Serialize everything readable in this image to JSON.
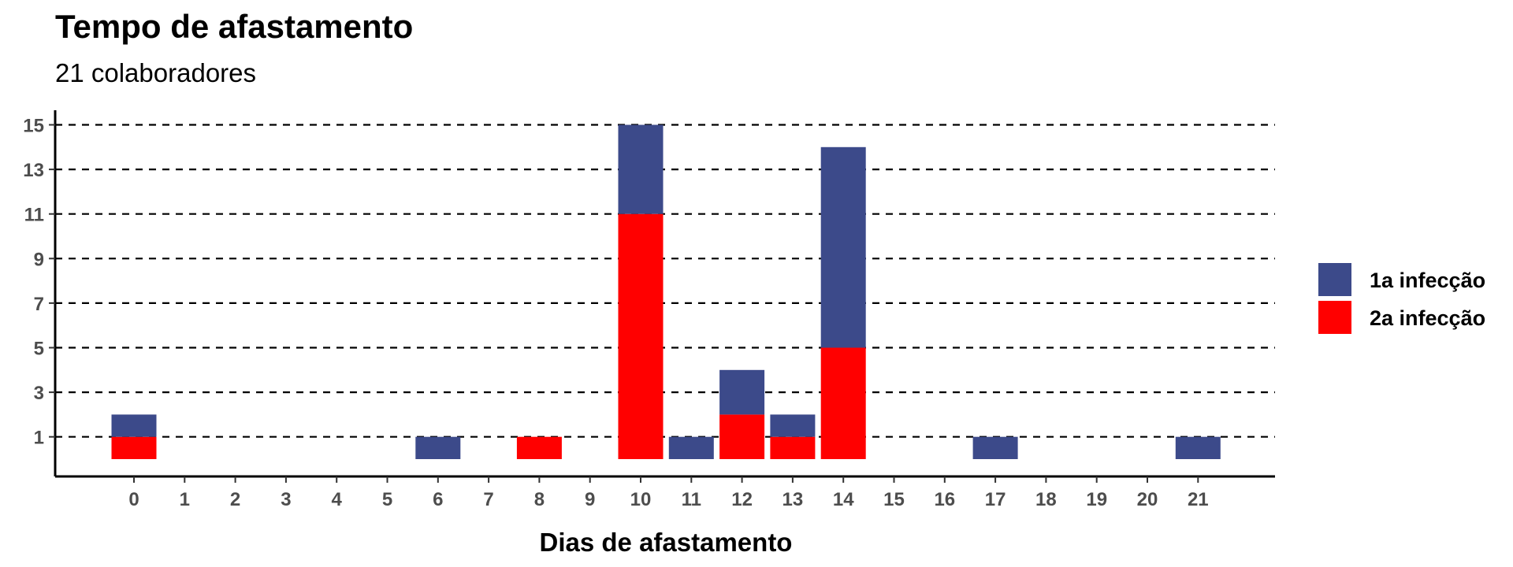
{
  "chart_data": {
    "type": "bar",
    "stacked": true,
    "title": "Tempo de afastamento",
    "subtitle": "21 colaboradores",
    "xlabel": "Dias de afastamento",
    "ylabel": "",
    "categories": [
      "0",
      "1",
      "2",
      "3",
      "4",
      "5",
      "6",
      "7",
      "8",
      "9",
      "10",
      "11",
      "12",
      "13",
      "14",
      "15",
      "16",
      "17",
      "18",
      "19",
      "20",
      "21"
    ],
    "yticks": [
      1,
      3,
      5,
      7,
      9,
      11,
      13,
      15
    ],
    "ylim": [
      0,
      15
    ],
    "grid": "horizontal dashed",
    "legend_position": "right",
    "series": [
      {
        "name": "2a infecção",
        "color": "#ff0000",
        "values": [
          1,
          0,
          0,
          0,
          0,
          0,
          0,
          0,
          1,
          0,
          11,
          0,
          2,
          1,
          5,
          0,
          0,
          0,
          0,
          0,
          0,
          0
        ]
      },
      {
        "name": "1a infecção",
        "color": "#3c4a8a",
        "values": [
          1,
          0,
          0,
          0,
          0,
          0,
          1,
          0,
          0,
          0,
          4,
          1,
          2,
          1,
          9,
          0,
          0,
          1,
          0,
          0,
          0,
          1
        ]
      }
    ],
    "legend_order": [
      "1a infecção",
      "2a infecção"
    ]
  }
}
